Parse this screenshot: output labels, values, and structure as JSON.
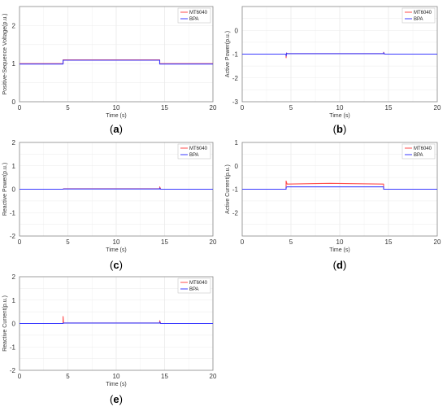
{
  "chart_data": [
    {
      "type": "line",
      "caption": "(a)",
      "xlabel": "Time (s)",
      "ylabel": "Positive-Sequence Voltage(p.u.)",
      "xlim": [
        0,
        20
      ],
      "ylim": [
        0,
        2.5
      ],
      "xticks": [
        0,
        5,
        10,
        15,
        20
      ],
      "yticks": [
        0,
        1,
        2
      ],
      "grid": true,
      "legend": "top-right",
      "series": [
        {
          "name": "MT6040",
          "color": "#ff4d4d",
          "x": [
            0,
            4.5,
            4.5,
            14.5,
            14.5,
            20
          ],
          "y": [
            1.0,
            1.0,
            1.1,
            1.1,
            1.0,
            1.0
          ]
        },
        {
          "name": "BPA",
          "color": "#3b3bff",
          "x": [
            0,
            4.5,
            4.5,
            14.5,
            14.5,
            20
          ],
          "y": [
            0.99,
            0.99,
            1.09,
            1.09,
            0.99,
            0.99
          ]
        }
      ]
    },
    {
      "type": "line",
      "caption": "(b)",
      "xlabel": "Time (s)",
      "ylabel": "Active Power(p.u.)",
      "xlim": [
        0,
        20
      ],
      "ylim": [
        -3,
        1
      ],
      "xticks": [
        0,
        5,
        10,
        15,
        20
      ],
      "yticks": [
        -3,
        -2,
        -1,
        0
      ],
      "grid": true,
      "legend": "top-right",
      "series": [
        {
          "name": "MT6040",
          "color": "#ff4d4d",
          "x": [
            0,
            4.5,
            4.5,
            4.55,
            4.6,
            14.5,
            14.5,
            14.6,
            20
          ],
          "y": [
            -1.0,
            -1.0,
            -1.15,
            -0.95,
            -0.98,
            -0.98,
            -0.92,
            -1.0,
            -1.0
          ]
        },
        {
          "name": "BPA",
          "color": "#3b3bff",
          "x": [
            0,
            4.5,
            4.5,
            4.55,
            4.6,
            14.5,
            14.5,
            14.6,
            20
          ],
          "y": [
            -1.0,
            -1.0,
            -1.08,
            -0.96,
            -0.98,
            -0.98,
            -0.94,
            -1.0,
            -1.0
          ]
        }
      ]
    },
    {
      "type": "line",
      "caption": "(c)",
      "xlabel": "Time (s)",
      "ylabel": "Reactive Power(p.u.)",
      "xlim": [
        0,
        20
      ],
      "ylim": [
        -2,
        2
      ],
      "xticks": [
        0,
        5,
        10,
        15,
        20
      ],
      "yticks": [
        -2,
        -1,
        0,
        1,
        2
      ],
      "grid": true,
      "legend": "top-right",
      "series": [
        {
          "name": "MT6040",
          "color": "#ff4d4d",
          "x": [
            0,
            4.5,
            4.55,
            14.5,
            14.5,
            14.6,
            20
          ],
          "y": [
            0.0,
            0.0,
            0.02,
            0.02,
            0.1,
            0.0,
            0.0
          ]
        },
        {
          "name": "BPA",
          "color": "#3b3bff",
          "x": [
            0,
            4.5,
            4.55,
            14.5,
            14.5,
            14.6,
            20
          ],
          "y": [
            0.0,
            0.0,
            0.01,
            0.01,
            0.05,
            0.0,
            0.0
          ]
        }
      ]
    },
    {
      "type": "line",
      "caption": "(d)",
      "xlabel": "Time (s)",
      "ylabel": "Active Current(p.u.)",
      "xlim": [
        0,
        20
      ],
      "ylim": [
        -3,
        1
      ],
      "xticks": [
        0,
        5,
        10,
        15,
        20
      ],
      "yticks": [
        -2,
        -1,
        0,
        1
      ],
      "grid": true,
      "legend": "top-right",
      "series": [
        {
          "name": "MT6040",
          "color": "#ff4d4d",
          "x": [
            0,
            4.5,
            4.5,
            4.6,
            9,
            14.5,
            14.5,
            20
          ],
          "y": [
            -1.0,
            -1.0,
            -0.65,
            -0.78,
            -0.75,
            -0.78,
            -1.0,
            -1.0
          ]
        },
        {
          "name": "BPA",
          "color": "#3b3bff",
          "x": [
            0,
            4.5,
            4.5,
            4.6,
            14.5,
            14.5,
            20
          ],
          "y": [
            -1.0,
            -1.0,
            -0.92,
            -0.9,
            -0.9,
            -1.0,
            -1.0
          ]
        }
      ]
    },
    {
      "type": "line",
      "caption": "(e)",
      "xlabel": "Time (s)",
      "ylabel": "Reactive Current(p.u.)",
      "xlim": [
        0,
        20
      ],
      "ylim": [
        -2,
        2
      ],
      "xticks": [
        0,
        5,
        10,
        15,
        20
      ],
      "yticks": [
        -2,
        -1,
        0,
        1,
        2
      ],
      "grid": true,
      "legend": "top-right",
      "series": [
        {
          "name": "MT6040",
          "color": "#ff4d4d",
          "x": [
            0,
            4.5,
            4.5,
            4.55,
            14.5,
            14.5,
            14.6,
            20
          ],
          "y": [
            0.0,
            0.0,
            0.3,
            0.02,
            0.02,
            0.12,
            0.0,
            0.0
          ]
        },
        {
          "name": "BPA",
          "color": "#3b3bff",
          "x": [
            0,
            4.5,
            4.55,
            14.5,
            14.5,
            14.6,
            20
          ],
          "y": [
            0.0,
            0.0,
            0.02,
            0.02,
            0.06,
            0.0,
            0.0
          ]
        }
      ]
    }
  ]
}
